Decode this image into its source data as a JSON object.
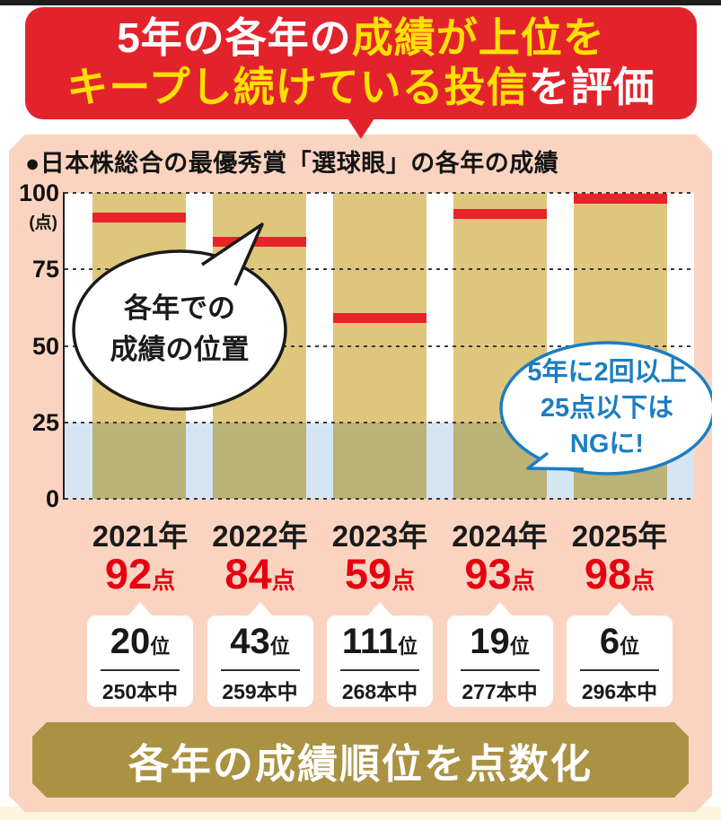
{
  "header": {
    "l1a": "5年の各年の",
    "l1b": "成績が上位を",
    "l2a": "キープし続けている投信",
    "l2b": "を評価"
  },
  "chart": {
    "title": "●日本株総合の最優秀賞「選球眼」の各年の成績",
    "unit": "(点)"
  },
  "chart_data": {
    "type": "bar",
    "title": "日本株総合の最優秀賞「選球眼」の各年の成績",
    "ylabel": "点",
    "ylim": [
      0,
      100
    ],
    "yticks": [
      100,
      75,
      50,
      25,
      0
    ],
    "categories": [
      "2021年",
      "2022年",
      "2023年",
      "2024年",
      "2025年"
    ],
    "values": [
      92,
      84,
      59,
      93,
      98
    ],
    "threshold_band": [
      0,
      25
    ],
    "grid": true,
    "legend": "none",
    "bar_color": "#dfc67d",
    "marker_color": "#e8232a",
    "threshold_band_color": "#d6e5f3"
  },
  "callout_position": {
    "line1": "各年での",
    "line2": "成績の位置"
  },
  "callout_ng": {
    "line1": "5年に2回以上",
    "line2": "25点以下は",
    "line3": "NGに!"
  },
  "results": [
    {
      "year": "2021年",
      "score": "92",
      "score_unit": "点",
      "rank": "20",
      "rank_unit": "位",
      "total": "250本中"
    },
    {
      "year": "2022年",
      "score": "84",
      "score_unit": "点",
      "rank": "43",
      "rank_unit": "位",
      "total": "259本中"
    },
    {
      "year": "2023年",
      "score": "59",
      "score_unit": "点",
      "rank": "111",
      "rank_unit": "位",
      "total": "268本中"
    },
    {
      "year": "2024年",
      "score": "93",
      "score_unit": "点",
      "rank": "19",
      "rank_unit": "位",
      "total": "277本中"
    },
    {
      "year": "2025年",
      "score": "98",
      "score_unit": "点",
      "rank": "6",
      "rank_unit": "位",
      "total": "296本中"
    }
  ],
  "footer": {
    "banner": "各年の成績順位を点数化"
  },
  "colors": {
    "banner_red": "#e3232c",
    "accent_yellow": "#ffe100",
    "panel_pink": "#fbd4c1",
    "bar_tan": "#dfc67d",
    "band_blue": "#d6e5f3",
    "marker_red": "#e8232a",
    "callout_blue": "#1b7ec2",
    "score_red": "#e60012",
    "footer_olive": "#ab9243"
  }
}
